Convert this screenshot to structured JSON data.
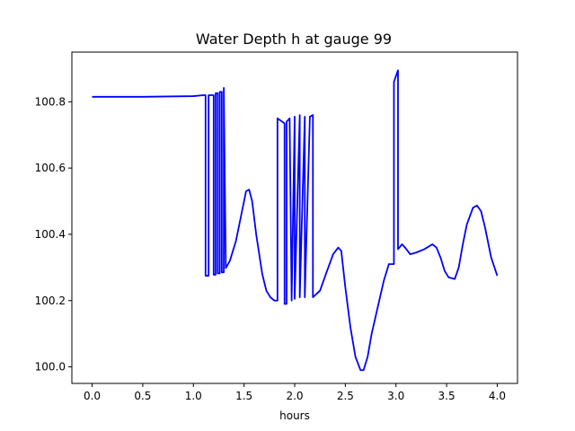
{
  "chart_data": {
    "type": "line",
    "title": "Water Depth h at gauge 99",
    "xlabel": "hours",
    "ylabel": "",
    "xlim": [
      -0.2,
      4.2
    ],
    "ylim": [
      99.95,
      100.95
    ],
    "xticks": [
      0.0,
      0.5,
      1.0,
      1.5,
      2.0,
      2.5,
      3.0,
      3.5,
      4.0
    ],
    "xtick_labels": [
      "0.0",
      "0.5",
      "1.0",
      "1.5",
      "2.0",
      "2.5",
      "3.0",
      "3.5",
      "4.0"
    ],
    "yticks": [
      100.0,
      100.2,
      100.4,
      100.6,
      100.8
    ],
    "ytick_labels": [
      "100.0",
      "100.2",
      "100.4",
      "100.6",
      "100.8"
    ],
    "grid": false,
    "series": [
      {
        "color": "#0000ff",
        "x": [
          0.0,
          0.5,
          1.0,
          1.1,
          1.12,
          1.12,
          1.15,
          1.15,
          1.2,
          1.2,
          1.22,
          1.22,
          1.24,
          1.24,
          1.26,
          1.26,
          1.28,
          1.28,
          1.3,
          1.3,
          1.32,
          1.36,
          1.42,
          1.48,
          1.52,
          1.55,
          1.58,
          1.62,
          1.68,
          1.72,
          1.76,
          1.8,
          1.83,
          1.83,
          1.9,
          1.9,
          1.92,
          1.92,
          1.95,
          1.97,
          1.97,
          2.0,
          2.0,
          2.05,
          2.05,
          2.1,
          2.1,
          2.15,
          2.18,
          2.18,
          2.25,
          2.32,
          2.38,
          2.43,
          2.46,
          2.5,
          2.55,
          2.6,
          2.65,
          2.68,
          2.72,
          2.76,
          2.82,
          2.88,
          2.93,
          2.98,
          2.98,
          3.02,
          3.02,
          3.06,
          3.09,
          3.14,
          3.2,
          3.28,
          3.36,
          3.4,
          3.44,
          3.48,
          3.52,
          3.58,
          3.62,
          3.66,
          3.7,
          3.76,
          3.8,
          3.84,
          3.88,
          3.94,
          4.0
        ],
        "y": [
          100.815,
          100.815,
          100.817,
          100.82,
          100.82,
          100.275,
          100.275,
          100.82,
          100.82,
          100.278,
          100.278,
          100.826,
          100.826,
          100.282,
          100.282,
          100.83,
          100.83,
          100.285,
          100.285,
          100.842,
          100.298,
          100.32,
          100.38,
          100.47,
          100.53,
          100.535,
          100.5,
          100.4,
          100.28,
          100.23,
          100.21,
          100.2,
          100.2,
          100.75,
          100.735,
          100.19,
          100.19,
          100.74,
          100.75,
          100.2,
          100.2,
          100.755,
          100.205,
          100.76,
          100.21,
          100.755,
          100.21,
          100.755,
          100.76,
          100.21,
          100.23,
          100.29,
          100.34,
          100.36,
          100.35,
          100.24,
          100.12,
          100.03,
          99.99,
          99.99,
          100.03,
          100.1,
          100.18,
          100.26,
          100.31,
          100.31,
          100.86,
          100.895,
          100.355,
          100.37,
          100.36,
          100.34,
          100.345,
          100.355,
          100.37,
          100.36,
          100.33,
          100.29,
          100.27,
          100.265,
          100.3,
          100.37,
          100.43,
          100.48,
          100.487,
          100.47,
          100.42,
          100.33,
          100.275
        ]
      }
    ]
  }
}
